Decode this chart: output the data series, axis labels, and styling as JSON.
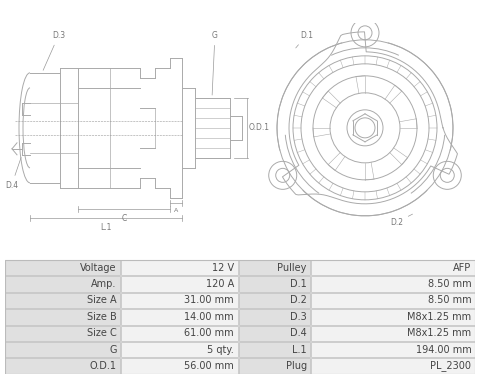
{
  "table_data": [
    [
      "Voltage",
      "12 V",
      "Pulley",
      "AFP"
    ],
    [
      "Amp.",
      "120 A",
      "D.1",
      "8.50 mm"
    ],
    [
      "Size A",
      "31.00 mm",
      "D.2",
      "8.50 mm"
    ],
    [
      "Size B",
      "14.00 mm",
      "D.3",
      "M8x1.25 mm"
    ],
    [
      "Size C",
      "61.00 mm",
      "D.4",
      "M8x1.25 mm"
    ],
    [
      "G",
      "5 qty.",
      "L.1",
      "194.00 mm"
    ],
    [
      "O.D.1",
      "56.00 mm",
      "Plug",
      "PL_2300"
    ]
  ],
  "bg_color": "#ffffff",
  "table_bg_label": "#e0e0e0",
  "table_bg_value": "#f2f2f2",
  "table_border": "#bbbbbb",
  "drawing_color": "#aaaaaa",
  "dim_color": "#999999",
  "label_color": "#777777",
  "font_size_table": 7.0,
  "font_size_label": 5.5
}
